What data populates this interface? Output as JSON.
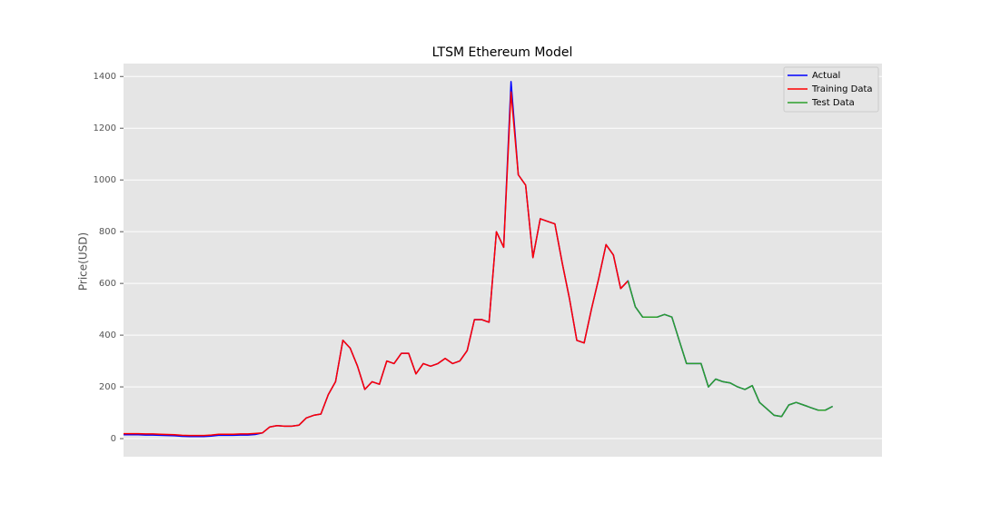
{
  "chart_data": {
    "type": "line",
    "title": "LTSM Ethereum Model",
    "ylabel": "Price(USD)",
    "ylim": [
      -70,
      1450
    ],
    "yticks": [
      0,
      200,
      400,
      600,
      800,
      1000,
      1200,
      1400
    ],
    "grid": true,
    "legend": "upper right",
    "series": [
      {
        "name": "Actual",
        "color": "#0000ff",
        "values": [
          15,
          15,
          15,
          14,
          14,
          13,
          12,
          11,
          9,
          8,
          8,
          8,
          10,
          13,
          13,
          13,
          14,
          14,
          16,
          22,
          45,
          50,
          48,
          48,
          52,
          80,
          90,
          95,
          170,
          220,
          380,
          350,
          280,
          190,
          220,
          210,
          300,
          290,
          330,
          330,
          250,
          290,
          280,
          290,
          310,
          290,
          300,
          340,
          460,
          460,
          450,
          800,
          740,
          1380,
          1020,
          980,
          700,
          850,
          840,
          830,
          680,
          540,
          380,
          370,
          500,
          620,
          750,
          710,
          580,
          610,
          510,
          470,
          470,
          470,
          480,
          470,
          380,
          290,
          290,
          290,
          200,
          230,
          220,
          215,
          200,
          190,
          205,
          140,
          115,
          90,
          85,
          130,
          140,
          130,
          120,
          110,
          110,
          125
        ]
      },
      {
        "name": "Training Data",
        "color": "#ff0000",
        "values": [
          19,
          19,
          19,
          18,
          18,
          17,
          16,
          15,
          13,
          12,
          12,
          12,
          14,
          17,
          17,
          17,
          18,
          18,
          20,
          22,
          45,
          50,
          48,
          48,
          52,
          80,
          90,
          95,
          170,
          220,
          380,
          350,
          280,
          190,
          220,
          210,
          300,
          290,
          330,
          330,
          250,
          290,
          280,
          290,
          310,
          290,
          300,
          340,
          460,
          460,
          450,
          800,
          740,
          1340,
          1020,
          980,
          700,
          850,
          840,
          830,
          680,
          540,
          380,
          370,
          500,
          620,
          750,
          710,
          580,
          610,
          null,
          null,
          null,
          null,
          null,
          null,
          null,
          null,
          null,
          null,
          null,
          null,
          null,
          null,
          null,
          null,
          null,
          null,
          null,
          null,
          null,
          null,
          null,
          null,
          null,
          null,
          null,
          null
        ]
      },
      {
        "name": "Test Data",
        "color": "#2ca02c",
        "values": [
          null,
          null,
          null,
          null,
          null,
          null,
          null,
          null,
          null,
          null,
          null,
          null,
          null,
          null,
          null,
          null,
          null,
          null,
          null,
          null,
          null,
          null,
          null,
          null,
          null,
          null,
          null,
          null,
          null,
          null,
          null,
          null,
          null,
          null,
          null,
          null,
          null,
          null,
          null,
          null,
          null,
          null,
          null,
          null,
          null,
          null,
          null,
          null,
          null,
          null,
          null,
          null,
          null,
          null,
          null,
          null,
          null,
          null,
          null,
          null,
          null,
          null,
          null,
          null,
          null,
          null,
          null,
          null,
          null,
          610,
          510,
          470,
          470,
          470,
          480,
          470,
          380,
          290,
          290,
          290,
          200,
          230,
          220,
          215,
          200,
          190,
          205,
          140,
          115,
          90,
          85,
          130,
          140,
          130,
          120,
          110,
          110,
          125
        ]
      }
    ]
  }
}
